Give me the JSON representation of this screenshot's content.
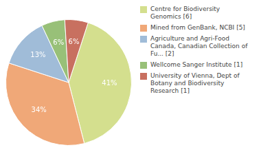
{
  "chart_data": {
    "type": "pie",
    "categories": [
      "Centre for Biodiversity\nGenomics [6]",
      "Mined from GenBank, NCBI [5]",
      "Agriculture and Agri-Food\nCanada, Canadian Collection of\nFu... [2]",
      "Wellcome Sanger Institute [1]",
      "University of Vienna, Dept of\nBotany and Biodiversity\nResearch [1]"
    ],
    "values": [
      41,
      34,
      13,
      6,
      6
    ],
    "value_labels": [
      "41%",
      "34%",
      "13%",
      "6%",
      "6%"
    ],
    "colors": [
      "#d4df8e",
      "#f0a878",
      "#a0bcd8",
      "#98c078",
      "#c87060"
    ],
    "data_labels": true,
    "legend": "right"
  }
}
